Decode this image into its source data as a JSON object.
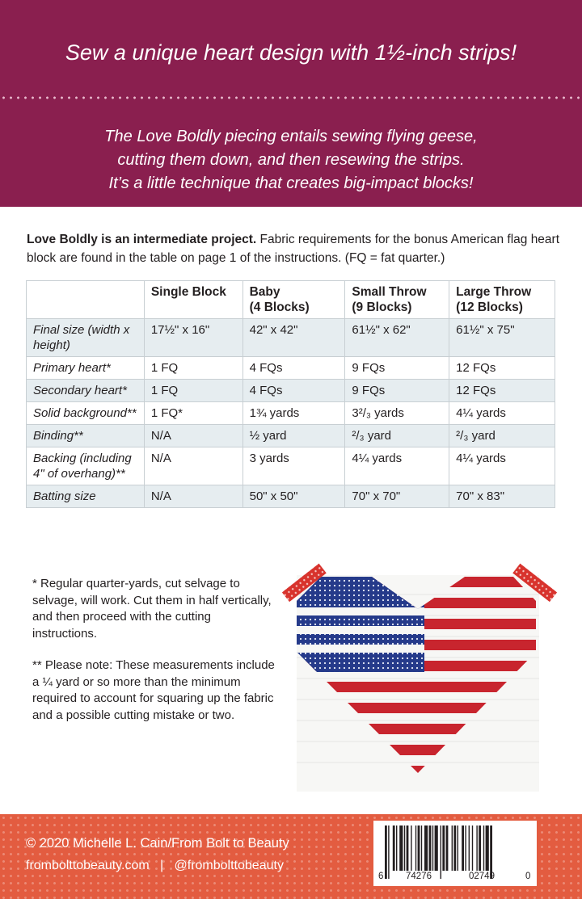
{
  "header": {
    "tagline": "Sew a unique heart design with 1½-inch strips!",
    "blurb_lines": [
      "The Love Boldly piecing entails sewing flying geese,",
      "cutting them down, and then resewing the strips.",
      "It’s a little technique that creates big-impact blocks!"
    ]
  },
  "intro": {
    "bold": "Love Boldly is an intermediate project.",
    "rest": " Fabric requirements for the bonus American flag heart block are found in the table on page 1 of the instructions. (FQ = fat quarter.)"
  },
  "table": {
    "headers": [
      {
        "line1": "",
        "line2": ""
      },
      {
        "line1": "Single Block",
        "line2": ""
      },
      {
        "line1": "Baby",
        "line2": "(4 Blocks)"
      },
      {
        "line1": "Small Throw",
        "line2": "(9 Blocks)"
      },
      {
        "line1": "Large Throw",
        "line2": "(12 Blocks)"
      }
    ],
    "rows": [
      {
        "label": "Final size (width x height)",
        "cells": [
          "17½\" x 16\"",
          "42\" x 42\"",
          "61½\" x 62\"",
          "61½\" x 75\""
        ]
      },
      {
        "label": "Primary heart*",
        "cells": [
          "1 FQ",
          "4 FQs",
          "9 FQs",
          "12 FQs"
        ]
      },
      {
        "label": "Secondary heart*",
        "cells": [
          "1 FQ",
          "4 FQs",
          "9 FQs",
          "12 FQs"
        ]
      },
      {
        "label": "Solid background**",
        "cells": [
          "1 FQ*",
          "1¾ yards",
          "3²/₃ yards",
          "4¼ yards"
        ]
      },
      {
        "label": "Binding**",
        "cells": [
          "N/A",
          "½ yard",
          "²/₃ yard",
          "²/₃ yard"
        ]
      },
      {
        "label": "Backing (including 4\" of overhang)**",
        "cells": [
          "N/A",
          "3 yards",
          "4¼ yards",
          "4¼ yards"
        ]
      },
      {
        "label": "Batting size",
        "cells": [
          "N/A",
          "50\" x 50\"",
          "70\" x 70\"",
          "70\" x 83\""
        ]
      }
    ]
  },
  "notes": {
    "note1": "* Regular quarter-yards, cut selvage to selvage, will work. Cut them in half vertically, and then proceed with the cutting instructions.",
    "note2": "** Please note: These measurements include a ¼ yard or so more than the minimum required to account for squaring up the fabric and a possible cutting mistake or two."
  },
  "footer": {
    "copyright": "© 2020 Michelle L. Cain/From Bolt to Beauty",
    "website": "frombolttobeauty.com",
    "separator": "|",
    "social": "@frombolttobeauty"
  },
  "barcode": {
    "lead": "6",
    "left": "74276",
    "right": "02749",
    "check": "0"
  },
  "colors": {
    "header_bg": "#8a1f4f",
    "footer_bg": "#e35c40",
    "table_shade": "#e6edf0",
    "quilt_red": "#c8252e",
    "quilt_blue": "#253a8a"
  }
}
